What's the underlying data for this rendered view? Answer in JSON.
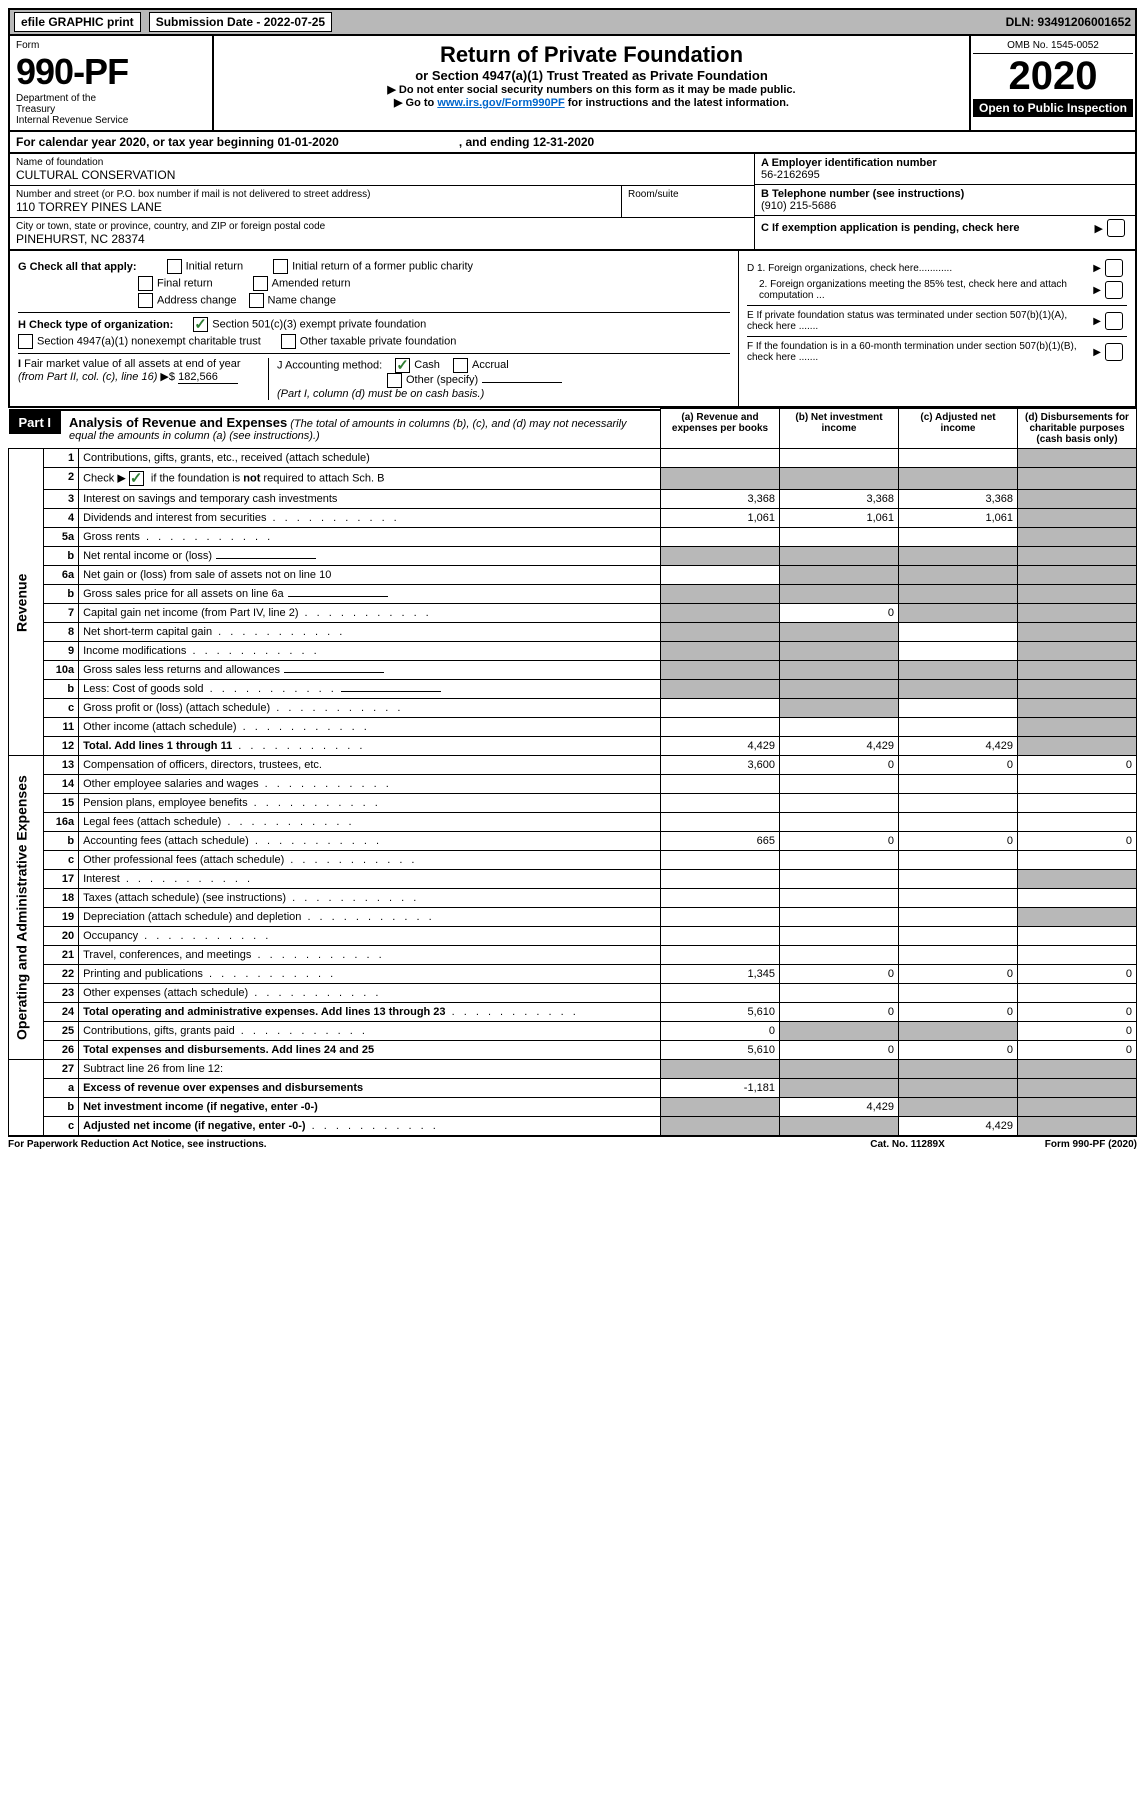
{
  "topbar": {
    "efile": "efile GRAPHIC print",
    "submission_label": "Submission Date - 2022-07-25",
    "dln": "DLN: 93491206001652"
  },
  "header": {
    "form_word": "Form",
    "form_number": "990-PF",
    "dept": "Department of the Treasury\nInternal Revenue Service",
    "title": "Return of Private Foundation",
    "sub1": "or Section 4947(a)(1) Trust Treated as Private Foundation",
    "sub2a": "▶ Do not enter social security numbers on this form as it may be made public.",
    "sub2b": "▶ Go to ",
    "link": "www.irs.gov/Form990PF",
    "sub2c": " for instructions and the latest information.",
    "omb": "OMB No. 1545-0052",
    "year": "2020",
    "inspection": "Open to Public Inspection"
  },
  "calyear": {
    "a": "For calendar year 2020, or tax year beginning 01-01-2020",
    "b": ", and ending 12-31-2020"
  },
  "info": {
    "name_lbl": "Name of foundation",
    "name": "CULTURAL CONSERVATION",
    "addr_lbl": "Number and street (or P.O. box number if mail is not delivered to street address)",
    "addr": "110 TORREY PINES LANE",
    "room_lbl": "Room/suite",
    "city_lbl": "City or town, state or province, country, and ZIP or foreign postal code",
    "city": "PINEHURST, NC  28374",
    "a_lbl": "A Employer identification number",
    "a_val": "56-2162695",
    "b_lbl": "B Telephone number (see instructions)",
    "b_val": "(910) 215-5686",
    "c_lbl": "C If exemption application is pending, check here"
  },
  "checks": {
    "g_lead": "G Check all that apply:",
    "g1": "Initial return",
    "g2": "Initial return of a former public charity",
    "g3": "Final return",
    "g4": "Amended return",
    "g5": "Address change",
    "g6": "Name change",
    "h_lead": "H Check type of organization:",
    "h1": "Section 501(c)(3) exempt private foundation",
    "h2": "Section 4947(a)(1) nonexempt charitable trust",
    "h3": "Other taxable private foundation",
    "i_text": "I Fair market value of all assets at end of year (from Part II, col. (c), line 16) ▶$ ",
    "i_val": "182,566",
    "j_lead": "J Accounting method:",
    "j1": "Cash",
    "j2": "Accrual",
    "j3": "Other (specify)",
    "j_note": "(Part I, column (d) must be on cash basis.)",
    "d1": "D 1. Foreign organizations, check here............",
    "d2": "2. Foreign organizations meeting the 85% test, check here and attach computation ...",
    "e": "E  If private foundation status was terminated under section 507(b)(1)(A), check here .......",
    "f": "F  If the foundation is in a 60-month termination under section 507(b)(1)(B), check here .......",
    "arrow": "▶"
  },
  "part1": {
    "label": "Part I",
    "title": "Analysis of Revenue and Expenses",
    "title_note": " (The total of amounts in columns (b), (c), and (d) may not necessarily equal the amounts in column (a) (see instructions).)",
    "cols": {
      "a": "(a) Revenue and expenses per books",
      "b": "(b) Net investment income",
      "c": "(c) Adjusted net income",
      "d": "(d) Disbursements for charitable purposes (cash basis only)"
    }
  },
  "sections": {
    "revenue": "Revenue",
    "opex": "Operating and Administrative Expenses"
  },
  "rows": [
    {
      "n": "1",
      "desc": "Contributions, gifts, grants, etc., received (attach schedule)",
      "a": "",
      "b": "",
      "c": "",
      "d_shade": true,
      "sec": "rev"
    },
    {
      "n": "2",
      "desc": "Check ▶ [✓] if the foundation is not required to attach Sch. B",
      "a_shade": true,
      "b_shade": true,
      "c_shade": true,
      "d_shade": true,
      "sec": "rev",
      "check": true,
      "dots": true
    },
    {
      "n": "3",
      "desc": "Interest on savings and temporary cash investments",
      "a": "3,368",
      "b": "3,368",
      "c": "3,368",
      "d_shade": true,
      "sec": "rev"
    },
    {
      "n": "4",
      "desc": "Dividends and interest from securities",
      "a": "1,061",
      "b": "1,061",
      "c": "1,061",
      "d_shade": true,
      "sec": "rev",
      "dots": true
    },
    {
      "n": "5a",
      "desc": "Gross rents",
      "a": "",
      "b": "",
      "c": "",
      "d_shade": true,
      "sec": "rev",
      "dots": true
    },
    {
      "n": "b",
      "desc": "Net rental income or (loss)",
      "a_shade": true,
      "b_shade": true,
      "c_shade": true,
      "d_shade": true,
      "sec": "rev",
      "inline_box": true
    },
    {
      "n": "6a",
      "desc": "Net gain or (loss) from sale of assets not on line 10",
      "a": "",
      "b_shade": true,
      "c_shade": true,
      "d_shade": true,
      "sec": "rev"
    },
    {
      "n": "b",
      "desc": "Gross sales price for all assets on line 6a",
      "a_shade": true,
      "b_shade": true,
      "c_shade": true,
      "d_shade": true,
      "sec": "rev",
      "inline_box": true
    },
    {
      "n": "7",
      "desc": "Capital gain net income (from Part IV, line 2)",
      "a_shade": true,
      "b": "0",
      "c_shade": true,
      "d_shade": true,
      "sec": "rev",
      "dots": true
    },
    {
      "n": "8",
      "desc": "Net short-term capital gain",
      "a_shade": true,
      "b_shade": true,
      "c": "",
      "d_shade": true,
      "sec": "rev",
      "dots": true
    },
    {
      "n": "9",
      "desc": "Income modifications",
      "a_shade": true,
      "b_shade": true,
      "c": "",
      "d_shade": true,
      "sec": "rev",
      "dots": true
    },
    {
      "n": "10a",
      "desc": "Gross sales less returns and allowances",
      "a_shade": true,
      "b_shade": true,
      "c_shade": true,
      "d_shade": true,
      "sec": "rev",
      "inline_box": true
    },
    {
      "n": "b",
      "desc": "Less: Cost of goods sold",
      "a_shade": true,
      "b_shade": true,
      "c_shade": true,
      "d_shade": true,
      "sec": "rev",
      "inline_box": true,
      "dots": true
    },
    {
      "n": "c",
      "desc": "Gross profit or (loss) (attach schedule)",
      "a": "",
      "b_shade": true,
      "c": "",
      "d_shade": true,
      "sec": "rev",
      "dots": true
    },
    {
      "n": "11",
      "desc": "Other income (attach schedule)",
      "a": "",
      "b": "",
      "c": "",
      "d_shade": true,
      "sec": "rev",
      "dots": true
    },
    {
      "n": "12",
      "desc": "Total. Add lines 1 through 11",
      "a": "4,429",
      "b": "4,429",
      "c": "4,429",
      "d_shade": true,
      "sec": "rev",
      "bold": true,
      "dots": true
    },
    {
      "n": "13",
      "desc": "Compensation of officers, directors, trustees, etc.",
      "a": "3,600",
      "b": "0",
      "c": "0",
      "d": "0",
      "sec": "op"
    },
    {
      "n": "14",
      "desc": "Other employee salaries and wages",
      "a": "",
      "b": "",
      "c": "",
      "d": "",
      "sec": "op",
      "dots": true
    },
    {
      "n": "15",
      "desc": "Pension plans, employee benefits",
      "a": "",
      "b": "",
      "c": "",
      "d": "",
      "sec": "op",
      "dots": true
    },
    {
      "n": "16a",
      "desc": "Legal fees (attach schedule)",
      "a": "",
      "b": "",
      "c": "",
      "d": "",
      "sec": "op",
      "dots": true
    },
    {
      "n": "b",
      "desc": "Accounting fees (attach schedule)",
      "a": "665",
      "b": "0",
      "c": "0",
      "d": "0",
      "sec": "op",
      "dots": true
    },
    {
      "n": "c",
      "desc": "Other professional fees (attach schedule)",
      "a": "",
      "b": "",
      "c": "",
      "d": "",
      "sec": "op",
      "dots": true
    },
    {
      "n": "17",
      "desc": "Interest",
      "a": "",
      "b": "",
      "c": "",
      "d_shade": true,
      "sec": "op",
      "dots": true
    },
    {
      "n": "18",
      "desc": "Taxes (attach schedule) (see instructions)",
      "a": "",
      "b": "",
      "c": "",
      "d": "",
      "sec": "op",
      "dots": true
    },
    {
      "n": "19",
      "desc": "Depreciation (attach schedule) and depletion",
      "a": "",
      "b": "",
      "c": "",
      "d_shade": true,
      "sec": "op",
      "dots": true
    },
    {
      "n": "20",
      "desc": "Occupancy",
      "a": "",
      "b": "",
      "c": "",
      "d": "",
      "sec": "op",
      "dots": true
    },
    {
      "n": "21",
      "desc": "Travel, conferences, and meetings",
      "a": "",
      "b": "",
      "c": "",
      "d": "",
      "sec": "op",
      "dots": true
    },
    {
      "n": "22",
      "desc": "Printing and publications",
      "a": "1,345",
      "b": "0",
      "c": "0",
      "d": "0",
      "sec": "op",
      "dots": true
    },
    {
      "n": "23",
      "desc": "Other expenses (attach schedule)",
      "a": "",
      "b": "",
      "c": "",
      "d": "",
      "sec": "op",
      "dots": true
    },
    {
      "n": "24",
      "desc": "Total operating and administrative expenses. Add lines 13 through 23",
      "a": "5,610",
      "b": "0",
      "c": "0",
      "d": "0",
      "sec": "op",
      "bold": true,
      "dots": true
    },
    {
      "n": "25",
      "desc": "Contributions, gifts, grants paid",
      "a": "0",
      "b_shade": true,
      "c_shade": true,
      "d": "0",
      "sec": "op",
      "dots": true
    },
    {
      "n": "26",
      "desc": "Total expenses and disbursements. Add lines 24 and 25",
      "a": "5,610",
      "b": "0",
      "c": "0",
      "d": "0",
      "sec": "op",
      "bold": true
    },
    {
      "n": "27",
      "desc": "Subtract line 26 from line 12:",
      "a_shade": true,
      "b_shade": true,
      "c_shade": true,
      "d_shade": true,
      "sec": "none"
    },
    {
      "n": "a",
      "desc": "Excess of revenue over expenses and disbursements",
      "a": "-1,181",
      "b_shade": true,
      "c_shade": true,
      "d_shade": true,
      "sec": "none",
      "bold": true
    },
    {
      "n": "b",
      "desc": "Net investment income (if negative, enter -0-)",
      "a_shade": true,
      "b": "4,429",
      "c_shade": true,
      "d_shade": true,
      "sec": "none",
      "bold": true
    },
    {
      "n": "c",
      "desc": "Adjusted net income (if negative, enter -0-)",
      "a_shade": true,
      "b_shade": true,
      "c": "4,429",
      "d_shade": true,
      "sec": "none",
      "bold": true,
      "dots": true
    }
  ],
  "footer": {
    "left": "For Paperwork Reduction Act Notice, see instructions.",
    "mid": "Cat. No. 11289X",
    "right": "Form 990-PF (2020)"
  },
  "colors": {
    "shade": "#b8b8b8",
    "link": "#0066cc",
    "check": "#2e7d32"
  }
}
